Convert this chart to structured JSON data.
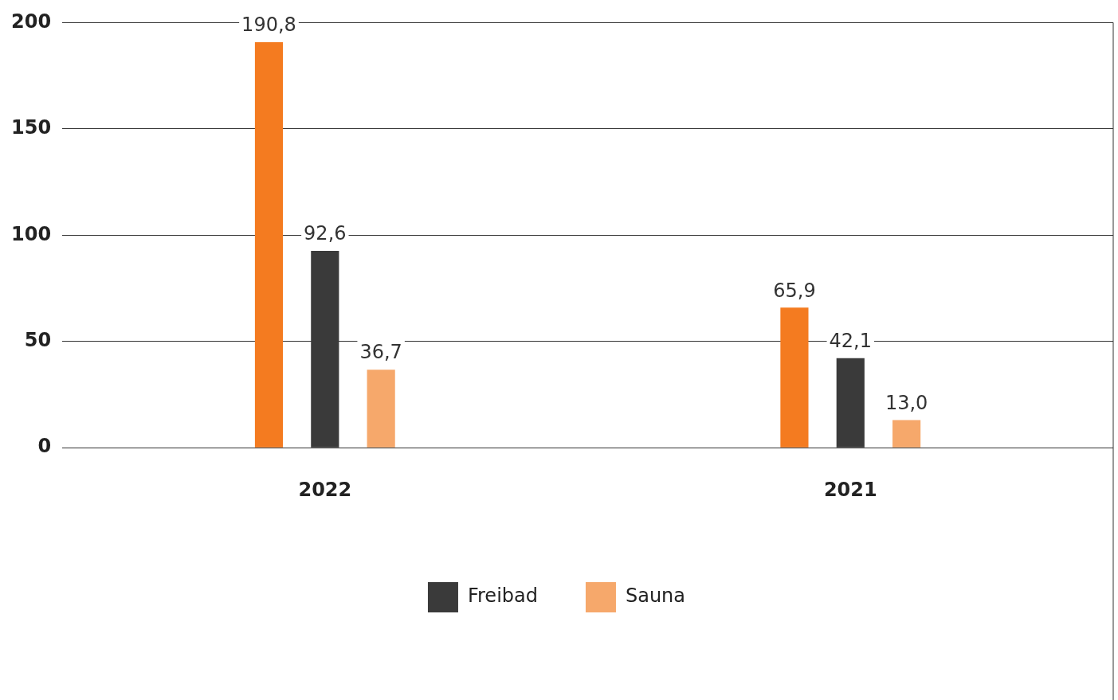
{
  "chart_data": {
    "type": "bar",
    "categories": [
      "2022",
      "2021"
    ],
    "series": [
      {
        "color": "#f47b20",
        "values": [
          190.8,
          65.9
        ],
        "value_labels": [
          "190,8",
          "65,9"
        ]
      },
      {
        "name": "Freibad",
        "color": "#3a3a3a",
        "values": [
          92.6,
          42.1
        ],
        "value_labels": [
          "92,6",
          "42,1"
        ]
      },
      {
        "name": "Sauna",
        "color": "#f6a86b",
        "values": [
          36.7,
          13.0
        ],
        "value_labels": [
          "36,7",
          "13,0"
        ]
      }
    ],
    "ylim": [
      0,
      200
    ],
    "yticks": [
      0,
      50,
      100,
      150,
      200
    ],
    "grid": "y",
    "legend": "bottom"
  }
}
